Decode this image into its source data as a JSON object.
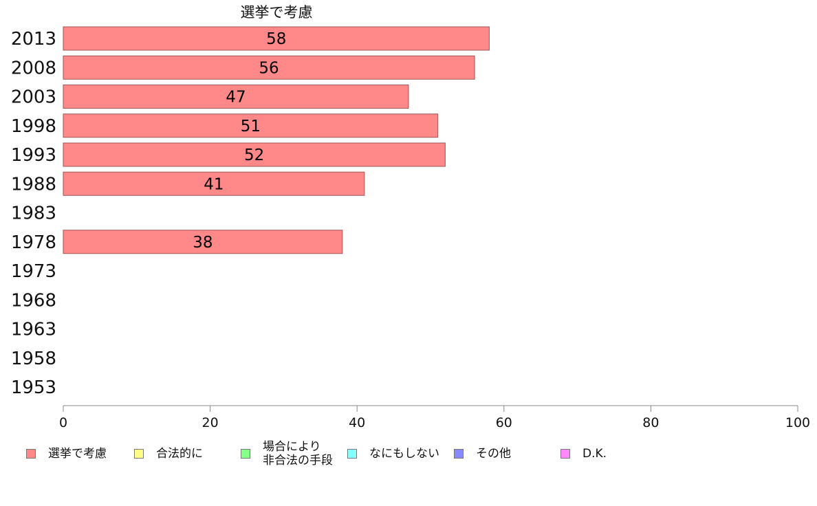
{
  "chart_data": {
    "type": "bar",
    "orientation": "horizontal",
    "title": "選挙で考慮",
    "categories": [
      "2013",
      "2008",
      "2003",
      "1998",
      "1993",
      "1988",
      "1983",
      "1978",
      "1973",
      "1968",
      "1963",
      "1958",
      "1953"
    ],
    "series": [
      {
        "name": "選挙で考慮",
        "color": "#ff8888",
        "values": [
          58,
          56,
          47,
          51,
          52,
          41,
          null,
          38,
          null,
          null,
          null,
          null,
          null
        ]
      }
    ],
    "data_labels": [
      "58",
      "56",
      "47",
      "51",
      "52",
      "41",
      "",
      "38",
      "",
      "",
      "",
      "",
      ""
    ],
    "xlim": [
      0,
      100
    ],
    "xticks": [
      0,
      20,
      40,
      60,
      80,
      100
    ],
    "xtick_labels": [
      "0",
      "20",
      "40",
      "60",
      "80",
      "100"
    ],
    "grid": false,
    "legend_position": "bottom"
  },
  "legend": [
    {
      "label": "選挙で考慮",
      "color": "#ff8888"
    },
    {
      "label": "合法的に",
      "color": "#ffff88"
    },
    {
      "label": "場合により\n非合法の手段",
      "color": "#88ff88"
    },
    {
      "label": "なにもしない",
      "color": "#88ffff"
    },
    {
      "label": "その他",
      "color": "#8888ff"
    },
    {
      "label": "D.K.",
      "color": "#ff88ff"
    }
  ]
}
